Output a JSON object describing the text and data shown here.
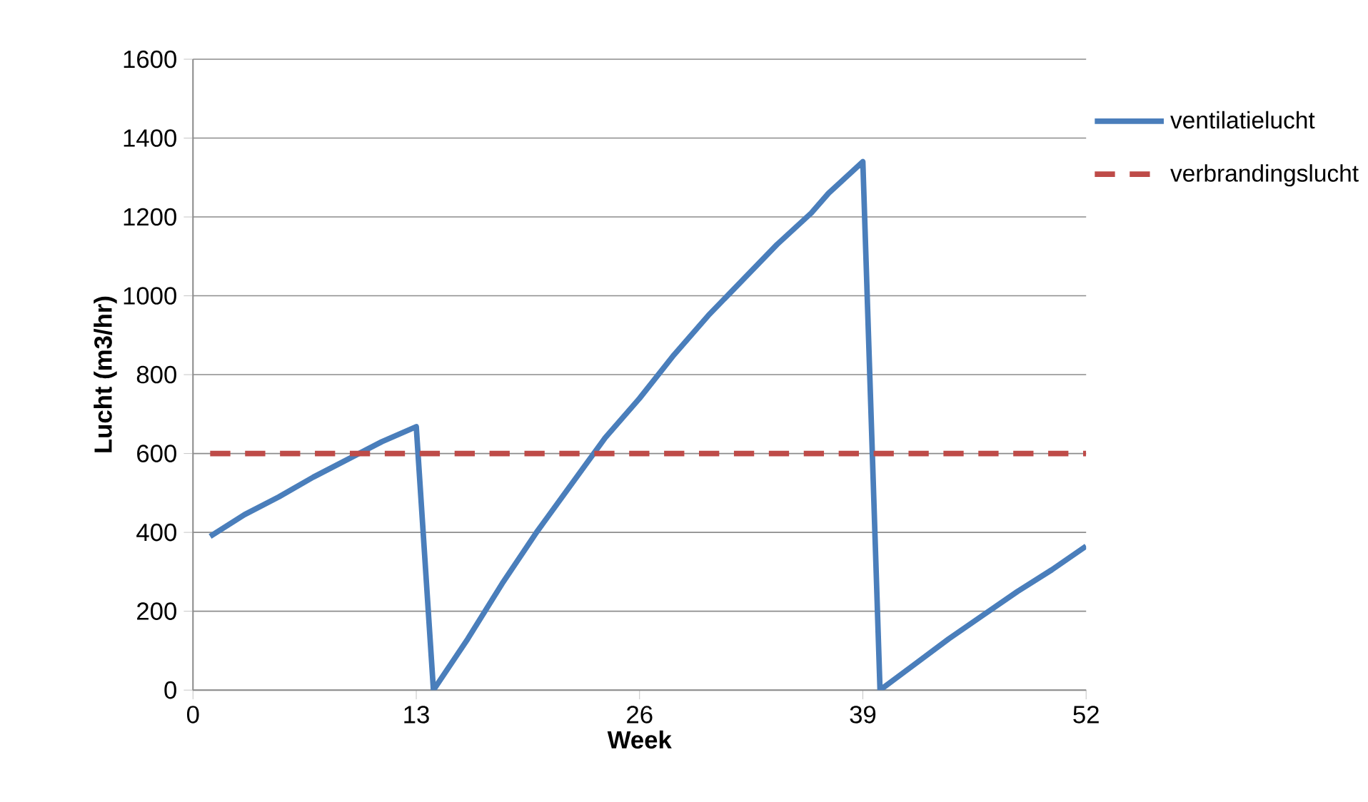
{
  "chart_data": {
    "type": "line",
    "xlabel": "Week",
    "ylabel": "Lucht (m3/hr)",
    "xlim": [
      0,
      52
    ],
    "xticks": [
      0,
      13,
      26,
      39,
      52
    ],
    "ylim": [
      0,
      1600
    ],
    "yticks": [
      0,
      200,
      400,
      600,
      800,
      1000,
      1200,
      1400,
      1600
    ],
    "grid": "y",
    "legend": "right",
    "series": [
      {
        "name": "ventilatielucht",
        "color": "#4a7ebb",
        "line_style": "solid",
        "x": [
          1,
          3,
          5,
          7,
          9,
          11,
          13,
          14,
          16,
          18,
          20,
          22,
          24,
          26,
          28,
          30,
          32,
          34,
          36,
          37,
          39,
          40,
          42,
          44,
          46,
          48,
          50,
          52
        ],
        "values": [
          390,
          445,
          490,
          540,
          585,
          630,
          668,
          0,
          130,
          270,
          400,
          520,
          640,
          740,
          850,
          950,
          1040,
          1130,
          1210,
          1260,
          1340,
          0,
          65,
          130,
          190,
          250,
          305,
          365
        ]
      },
      {
        "name": "verbrandingslucht",
        "color": "#be4b48",
        "line_style": "dashed",
        "x": [
          1,
          52
        ],
        "values": [
          600,
          600
        ]
      }
    ]
  }
}
